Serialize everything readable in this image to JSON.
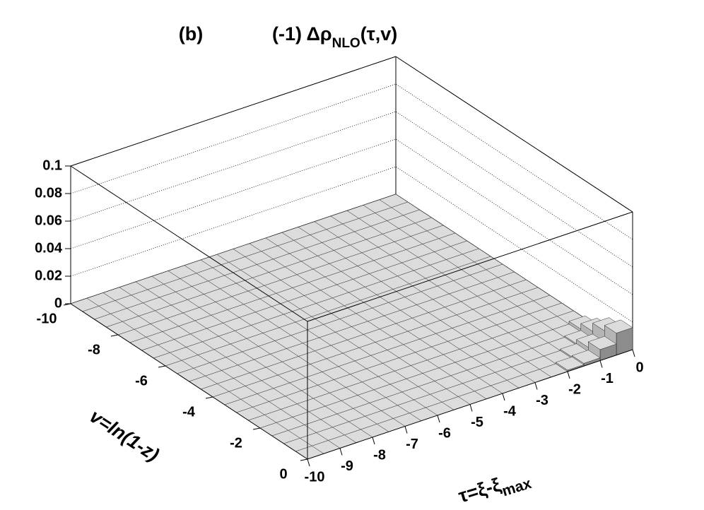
{
  "chart_data": {
    "type": "lego",
    "panel_label": "(b)",
    "title": "(-1) Δρ",
    "title_sub": "NLO",
    "title_end": "(τ,v)",
    "x_label": "τ=ξ-ξ",
    "x_label_sub": "max",
    "y_label": "v=ln(1-z)",
    "xlim": [
      -10,
      0
    ],
    "ylim": [
      -10,
      0
    ],
    "zlim": [
      0,
      0.1
    ],
    "xticks": [
      -10,
      -9,
      -8,
      -7,
      -6,
      -5,
      -4,
      -3,
      -2,
      -1,
      0
    ],
    "yticks": [
      -10,
      -8,
      -6,
      -4,
      -2,
      0
    ],
    "zticks": [
      0,
      0.02,
      0.04,
      0.06,
      0.08,
      0.1
    ],
    "grid": true,
    "color": "#dcdcdc",
    "z": [
      [
        0,
        0,
        0,
        0,
        0,
        0,
        0,
        0,
        0,
        0,
        0,
        0,
        0,
        0,
        0,
        0,
        0,
        0,
        0,
        0
      ],
      [
        0,
        0,
        0,
        0,
        0,
        0,
        0,
        0,
        0,
        0,
        0,
        0,
        0,
        0,
        0,
        0,
        0,
        0,
        0,
        0
      ],
      [
        0,
        0,
        0,
        0,
        0,
        0,
        0,
        0,
        0,
        0,
        0,
        0,
        0,
        0,
        0,
        0,
        0,
        0,
        0,
        0
      ],
      [
        0,
        0,
        0,
        0,
        0,
        0,
        0,
        0,
        0,
        0,
        0,
        0,
        0,
        0,
        0,
        0,
        0,
        0,
        0,
        0
      ],
      [
        0,
        0,
        0,
        0,
        0,
        0,
        0,
        0,
        0,
        0,
        0,
        0,
        0,
        0,
        0,
        0,
        0,
        0,
        0,
        0
      ],
      [
        0,
        0,
        0,
        0,
        0,
        0,
        0,
        0,
        0,
        0,
        0,
        0,
        0,
        0,
        0,
        0,
        0,
        0,
        0,
        0
      ],
      [
        0,
        0,
        0,
        0,
        0,
        0,
        0,
        0,
        0,
        0,
        0,
        0,
        0,
        0,
        0,
        0,
        0,
        0,
        0,
        0
      ],
      [
        0,
        0,
        0,
        0,
        0,
        0,
        0,
        0,
        0,
        0,
        0,
        0,
        0,
        0,
        0,
        0,
        0,
        0,
        0,
        0
      ],
      [
        0,
        0,
        0,
        0,
        0,
        0,
        0,
        0,
        0,
        0,
        0,
        0,
        0,
        0,
        0,
        0,
        0,
        0,
        0,
        0
      ],
      [
        0,
        0,
        0,
        0,
        0,
        0,
        0,
        0,
        0,
        0,
        0,
        0,
        0,
        0,
        0,
        0,
        0,
        0,
        0,
        0
      ],
      [
        0,
        0,
        0,
        0,
        0,
        0,
        0,
        0,
        0,
        0,
        0,
        0,
        0,
        0,
        0,
        0,
        0,
        0,
        0,
        0
      ],
      [
        0,
        0,
        0,
        0,
        0,
        0,
        0,
        0,
        0,
        0,
        0,
        0,
        0,
        0,
        0,
        0,
        0,
        0,
        0,
        0
      ],
      [
        0,
        0,
        0,
        0,
        0,
        0,
        0,
        0,
        0,
        0,
        0,
        0,
        0,
        0,
        0,
        0,
        0,
        0,
        0,
        0
      ],
      [
        0,
        0,
        0,
        0,
        0,
        0,
        0,
        0,
        0,
        0,
        0,
        0,
        0,
        0,
        0,
        0,
        0,
        0,
        0,
        0
      ],
      [
        0,
        0,
        0,
        0,
        0,
        0,
        0,
        0,
        0,
        0,
        0,
        0,
        0,
        0,
        0,
        0,
        0,
        0,
        0,
        0
      ],
      [
        0,
        0,
        0,
        0,
        0,
        0,
        0,
        0,
        0,
        0,
        0,
        0,
        0,
        0,
        0,
        0,
        0,
        0,
        0,
        0
      ],
      [
        0,
        0,
        0,
        0,
        0,
        0,
        0,
        0,
        0,
        0,
        0,
        0,
        0,
        0,
        0,
        0,
        0,
        0,
        0,
        0.002
      ],
      [
        0,
        0,
        0,
        0,
        0,
        0,
        0,
        0,
        0,
        0,
        0,
        0,
        0,
        0,
        0,
        0,
        0,
        0,
        0.001,
        0.006
      ],
      [
        0,
        0,
        0,
        0,
        0,
        0,
        0,
        0,
        0,
        0,
        0,
        0,
        0,
        0,
        0,
        0,
        0,
        0.001,
        0.004,
        0.012
      ],
      [
        0,
        0,
        0,
        0,
        0,
        0,
        0,
        0,
        0,
        0,
        0,
        0,
        0,
        0,
        0,
        0,
        0.001,
        0.002,
        0.008,
        0.016
      ]
    ]
  }
}
